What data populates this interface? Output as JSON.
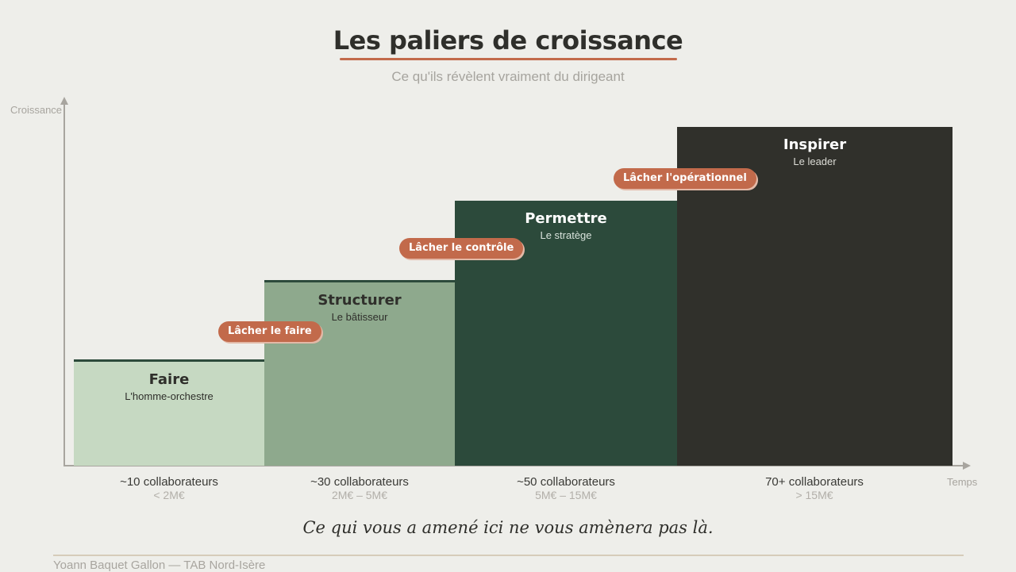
{
  "header": {
    "title": "Les paliers de croissance",
    "subtitle": "Ce qu'ils révèlent vraiment du dirigeant"
  },
  "axes": {
    "y_label": "Croissance",
    "x_label": "Temps"
  },
  "steps": [
    {
      "name": "Faire",
      "role": "L'homme-orchestre",
      "team": "~10 collaborateurs",
      "revenue": "< 2M€",
      "color": "#c6d9c2"
    },
    {
      "name": "Structurer",
      "role": "Le bâtisseur",
      "team": "~30 collaborateurs",
      "revenue": "2M€ – 5M€",
      "color": "#8ea98d"
    },
    {
      "name": "Permettre",
      "role": "Le stratège",
      "team": "~50 collaborateurs",
      "revenue": "5M€ – 15M€",
      "color": "#2c4a3b"
    },
    {
      "name": "Inspirer",
      "role": "Le leader",
      "team": "70+ collaborateurs",
      "revenue": "> 15M€",
      "color": "#30302b"
    }
  ],
  "transitions": [
    "Lâcher le faire",
    "Lâcher le contrôle",
    "Lâcher l'opérationnel"
  ],
  "quote": "Ce qui vous a amené ici ne vous amènera pas là.",
  "footer": "Yoann Baquet Gallon  —  TAB Nord-Isère"
}
